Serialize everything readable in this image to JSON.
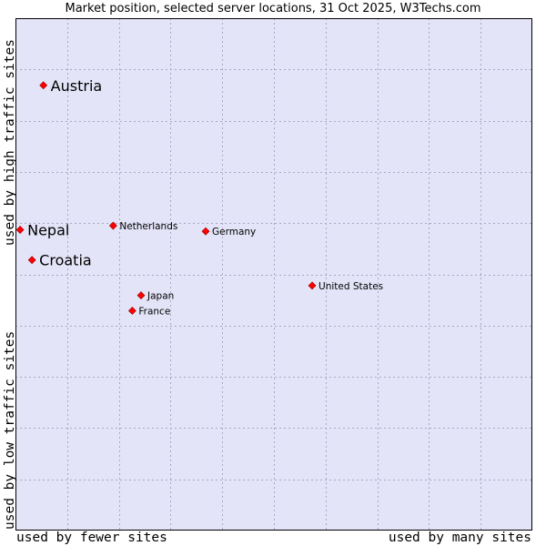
{
  "chart_data": {
    "type": "scatter",
    "title": "Market position, selected server locations, 31 Oct 2025, W3Techs.com",
    "xlabel_left": "used by fewer sites",
    "xlabel_right": "used by many sites",
    "ylabel_bottom": "used by low traffic sites",
    "ylabel_top": "used by high traffic sites",
    "xlim": [
      0,
      100
    ],
    "ylim": [
      0,
      100
    ],
    "grid": true,
    "colors": {
      "plot_bg": "#e4e4f8",
      "grid": "#a8a8c0",
      "marker": "#ff0000",
      "marker_edge": "#990000"
    },
    "points": [
      {
        "label": "Austria",
        "x": 5.4,
        "y": 86.9,
        "highlight": true
      },
      {
        "label": "Nepal",
        "x": 0.9,
        "y": 58.7,
        "highlight": true
      },
      {
        "label": "Croatia",
        "x": 3.2,
        "y": 52.8,
        "highlight": true
      },
      {
        "label": "Netherlands",
        "x": 18.9,
        "y": 59.5,
        "highlight": false
      },
      {
        "label": "Germany",
        "x": 36.8,
        "y": 58.4,
        "highlight": false
      },
      {
        "label": "United States",
        "x": 57.4,
        "y": 47.8,
        "highlight": false
      },
      {
        "label": "Japan",
        "x": 24.3,
        "y": 45.9,
        "highlight": false
      },
      {
        "label": "France",
        "x": 22.6,
        "y": 42.9,
        "highlight": false
      }
    ]
  }
}
